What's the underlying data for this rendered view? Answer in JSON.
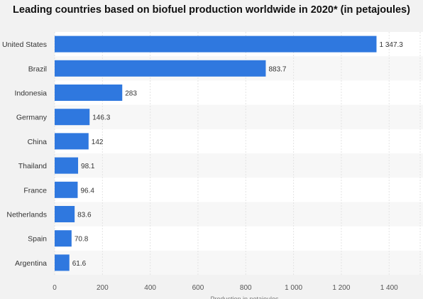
{
  "chart_data": {
    "type": "bar",
    "orientation": "horizontal",
    "title": "Leading countries based on biofuel production worldwide in 2020* (in petajoules)",
    "xlabel": "Production in petajoules",
    "ylabel": "",
    "categories": [
      "United States",
      "Brazil",
      "Indonesia",
      "Germany",
      "China",
      "Thailand",
      "France",
      "Netherlands",
      "Spain",
      "Argentina"
    ],
    "values": [
      1347.3,
      883.7,
      283,
      146.3,
      142,
      98.1,
      96.4,
      83.6,
      70.8,
      61.6
    ],
    "value_labels": [
      "1 347.3",
      "883.7",
      "283",
      "146.3",
      "142",
      "98.1",
      "96.4",
      "83.6",
      "70.8",
      "61.6"
    ],
    "xlim": [
      0,
      1530
    ],
    "xticks": [
      0,
      200,
      400,
      600,
      800,
      1000,
      1200,
      1400
    ],
    "xtick_labels": [
      "0",
      "200",
      "400",
      "600",
      "800",
      "1 000",
      "1 200",
      "1 400"
    ],
    "grid": true,
    "bar_color": "#2f78df"
  }
}
